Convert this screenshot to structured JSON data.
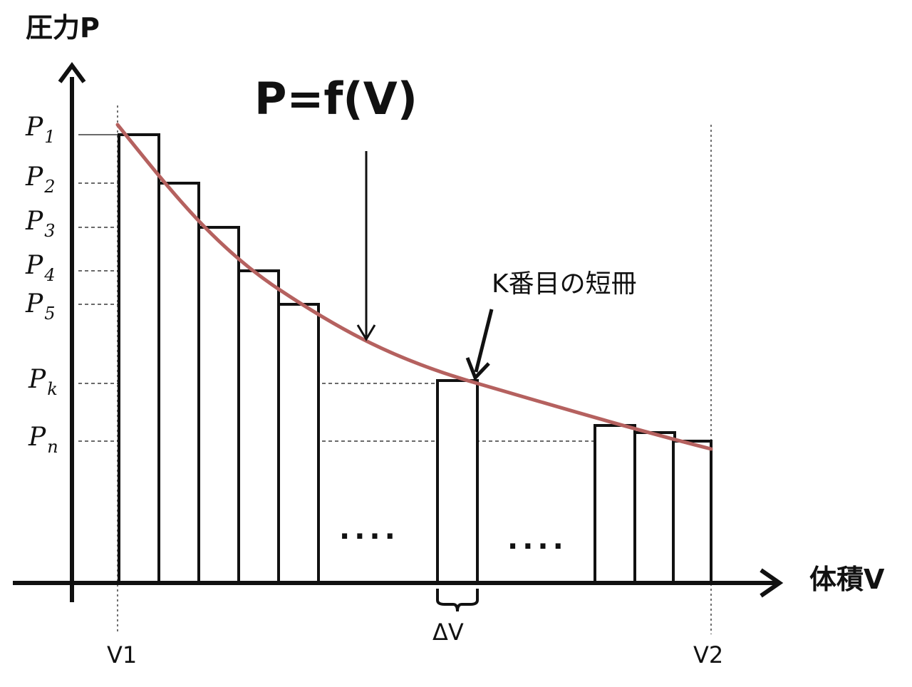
{
  "labels": {
    "y_axis": "圧力P",
    "x_axis": "体積V",
    "formula": "P=f(V)",
    "strip_annotation": "K番目の短冊",
    "delta_v": "ΔV",
    "v_start": "V1",
    "v_end": "V2",
    "ellipsis_left": "....",
    "ellipsis_right": "...."
  },
  "p_levels": [
    {
      "main": "P",
      "sub": "1"
    },
    {
      "main": "P",
      "sub": "2"
    },
    {
      "main": "P",
      "sub": "3"
    },
    {
      "main": "P",
      "sub": "4"
    },
    {
      "main": "P",
      "sub": "5"
    },
    {
      "main": "P",
      "sub": "k"
    },
    {
      "main": "P",
      "sub": "n"
    }
  ],
  "colors": {
    "curve": "#b5615f",
    "ink": "#111111"
  }
}
